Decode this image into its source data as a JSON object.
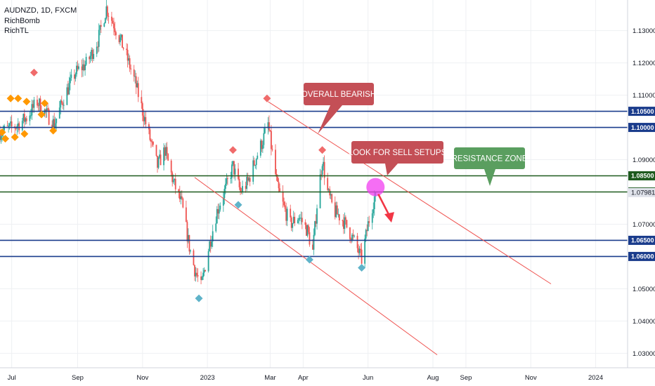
{
  "legend": {
    "symbol_line": "AUDNZD, 1D, FXCM",
    "indicator1": "RichBomb",
    "indicator2": "RichTL"
  },
  "colors": {
    "up": "#26a69a",
    "down": "#ef5350",
    "blue_level": "#1a3c8c",
    "green_level": "#1e5a1e",
    "trend": "#ef5350",
    "callout_red": "#c44f56",
    "callout_green": "#5a9e5f",
    "marker_orange": "#ff9800",
    "marker_red": "#f06b6b",
    "marker_teal": "#5fb3c9",
    "highlight_pink": "#f23ef0",
    "arrow": "#f23645"
  },
  "chart_data": {
    "type": "candlestick",
    "symbol": "AUDNZD",
    "timeframe": "1D",
    "ylim": [
      1.0255,
      1.1395
    ],
    "y_ticks": [
      1.03,
      1.04,
      1.05,
      1.06,
      1.07,
      1.08,
      1.09,
      1.1,
      1.11,
      1.12,
      1.13
    ],
    "y_tick_labels": [
      "1.03000",
      "1.04000",
      "1.05000",
      "1.06000",
      "1.07000",
      "1.08000",
      "1.09000",
      "1.10000",
      "1.11000",
      "1.12000",
      "1.13000"
    ],
    "x_range": [
      "2022-06-20",
      "2024-01-31"
    ],
    "x_ticks": [
      {
        "date": "2022-07-01",
        "label": "Jul"
      },
      {
        "date": "2022-09-01",
        "label": "Sep"
      },
      {
        "date": "2022-11-01",
        "label": "Nov"
      },
      {
        "date": "2023-01-01",
        "label": "2023"
      },
      {
        "date": "2023-03-01",
        "label": "Mar"
      },
      {
        "date": "2023-04-01",
        "label": "Apr"
      },
      {
        "date": "2023-06-01",
        "label": "Jun"
      },
      {
        "date": "2023-08-01",
        "label": "Aug"
      },
      {
        "date": "2023-09-01",
        "label": "Sep"
      },
      {
        "date": "2023-11-01",
        "label": "Nov"
      },
      {
        "date": "2024-01-01",
        "label": "2024"
      }
    ],
    "price_path": [
      [
        "2022-06-20",
        1.0985
      ],
      [
        "2022-07-05",
        1.1005
      ],
      [
        "2022-07-15",
        1.103
      ],
      [
        "2022-07-25",
        1.108
      ],
      [
        "2022-08-02",
        1.1045
      ],
      [
        "2022-08-10",
        1.101
      ],
      [
        "2022-08-20",
        1.11
      ],
      [
        "2022-08-30",
        1.117
      ],
      [
        "2022-09-10",
        1.12
      ],
      [
        "2022-09-20",
        1.127
      ],
      [
        "2022-09-28",
        1.137
      ],
      [
        "2022-10-05",
        1.132
      ],
      [
        "2022-10-15",
        1.124
      ],
      [
        "2022-10-25",
        1.114
      ],
      [
        "2022-11-05",
        1.1
      ],
      [
        "2022-11-15",
        1.088
      ],
      [
        "2022-11-22",
        1.093
      ],
      [
        "2022-11-30",
        1.083
      ],
      [
        "2022-12-08",
        1.076
      ],
      [
        "2022-12-15",
        1.063
      ],
      [
        "2022-12-20",
        1.056
      ],
      [
        "2022-12-26",
        1.0505
      ],
      [
        "2023-01-03",
        1.064
      ],
      [
        "2023-01-10",
        1.074
      ],
      [
        "2023-01-18",
        1.081
      ],
      [
        "2023-01-25",
        1.088
      ],
      [
        "2023-02-01",
        1.08
      ],
      [
        "2023-02-08",
        1.083
      ],
      [
        "2023-02-15",
        1.09
      ],
      [
        "2023-02-22",
        1.096
      ],
      [
        "2023-02-27",
        1.101
      ],
      [
        "2023-03-03",
        1.092
      ],
      [
        "2023-03-08",
        1.081
      ],
      [
        "2023-03-14",
        1.075
      ],
      [
        "2023-03-20",
        1.07
      ],
      [
        "2023-03-28",
        1.0725
      ],
      [
        "2023-04-05",
        1.068
      ],
      [
        "2023-04-10",
        1.0615
      ],
      [
        "2023-04-14",
        1.076
      ],
      [
        "2023-04-19",
        1.09
      ],
      [
        "2023-04-24",
        1.08
      ],
      [
        "2023-04-30",
        1.074
      ],
      [
        "2023-05-07",
        1.072
      ],
      [
        "2023-05-14",
        1.068
      ],
      [
        "2023-05-20",
        1.064
      ],
      [
        "2023-05-26",
        1.059
      ],
      [
        "2023-06-01",
        1.07
      ],
      [
        "2023-06-08",
        1.0798
      ]
    ],
    "last_price": 1.07981,
    "last_price_label": "1.07981",
    "horizontal_levels": [
      {
        "value": 1.105,
        "label": "1.10500",
        "kind": "blue"
      },
      {
        "value": 1.1,
        "label": "1.10000",
        "kind": "blue"
      },
      {
        "value": 1.085,
        "label": "1.08500",
        "kind": "green"
      },
      {
        "value": 1.08,
        "label": "1.08000",
        "kind": "green"
      },
      {
        "value": 1.065,
        "label": "1.06500",
        "kind": "blue"
      },
      {
        "value": 1.06,
        "label": "1.06000",
        "kind": "blue"
      }
    ],
    "trendlines": [
      {
        "from": [
          "2023-02-27",
          1.108
        ],
        "to": [
          "2023-11-20",
          1.0515
        ]
      },
      {
        "from": [
          "2022-12-20",
          1.0845
        ],
        "to": [
          "2023-08-05",
          1.0295
        ]
      }
    ],
    "markers": [
      {
        "date": "2022-06-22",
        "value": 1.0985,
        "color": "orange"
      },
      {
        "date": "2022-06-25",
        "value": 1.0965,
        "color": "orange"
      },
      {
        "date": "2022-06-30",
        "value": 1.109,
        "color": "orange"
      },
      {
        "date": "2022-07-04",
        "value": 1.097,
        "color": "orange"
      },
      {
        "date": "2022-07-07",
        "value": 1.109,
        "color": "orange"
      },
      {
        "date": "2022-07-13",
        "value": 1.098,
        "color": "orange"
      },
      {
        "date": "2022-07-15",
        "value": 1.108,
        "color": "orange"
      },
      {
        "date": "2022-07-22",
        "value": 1.117,
        "color": "red"
      },
      {
        "date": "2022-07-29",
        "value": 1.104,
        "color": "orange"
      },
      {
        "date": "2022-08-01",
        "value": 1.1075,
        "color": "orange"
      },
      {
        "date": "2022-08-09",
        "value": 1.099,
        "color": "orange"
      },
      {
        "date": "2022-12-24",
        "value": 1.047,
        "color": "teal"
      },
      {
        "date": "2023-01-25",
        "value": 1.093,
        "color": "red"
      },
      {
        "date": "2023-01-30",
        "value": 1.076,
        "color": "teal"
      },
      {
        "date": "2023-02-26",
        "value": 1.109,
        "color": "red"
      },
      {
        "date": "2023-04-07",
        "value": 1.059,
        "color": "teal"
      },
      {
        "date": "2023-04-19",
        "value": 1.093,
        "color": "red"
      },
      {
        "date": "2023-05-26",
        "value": 1.0565,
        "color": "teal"
      }
    ],
    "annotations": [
      {
        "id": "overall-bearish",
        "text": "OVERALL BEARISH",
        "color": "red"
      },
      {
        "id": "look-for-sell",
        "text": "LOOK FOR SELL SETUPS",
        "color": "red"
      },
      {
        "id": "resistance-zone",
        "text": "RESISTANCE ZONE",
        "color": "green"
      }
    ]
  }
}
